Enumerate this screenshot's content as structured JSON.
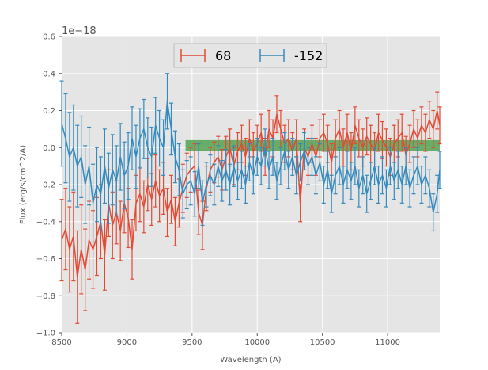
{
  "chart_data": {
    "type": "line",
    "title": "",
    "xlabel": "Wavelength (A)",
    "ylabel": "Flux (erg/s/cm^2/A)",
    "y_offset_label": "1e−18",
    "xlim": [
      8500,
      11400
    ],
    "ylim": [
      -1.0,
      0.6
    ],
    "xticks": [
      8500,
      9000,
      9500,
      10000,
      10500,
      11000
    ],
    "yticks": [
      -1.0,
      -0.8,
      -0.6,
      -0.4,
      -0.2,
      0.0,
      0.2,
      0.4,
      0.6
    ],
    "ytick_labels": [
      "−1.0",
      "−0.8",
      "−0.6",
      "−0.4",
      "−0.2",
      "0.0",
      "0.2",
      "0.4",
      "0.6"
    ],
    "grid": true,
    "legend_location": "top-center",
    "band": {
      "name": "shaded region",
      "x": [
        9450,
        11400
      ],
      "y": [
        -0.02,
        0.04
      ],
      "color": "#3c9a3c"
    },
    "series": [
      {
        "name": "68",
        "color": "#e24a33",
        "points": [
          [
            8500,
            -0.5,
            0.22
          ],
          [
            8530,
            -0.44,
            0.22
          ],
          [
            8560,
            -0.55,
            0.23
          ],
          [
            8590,
            -0.48,
            0.24
          ],
          [
            8620,
            -0.7,
            0.25
          ],
          [
            8650,
            -0.55,
            0.24
          ],
          [
            8680,
            -0.66,
            0.22
          ],
          [
            8710,
            -0.5,
            0.21
          ],
          [
            8740,
            -0.55,
            0.21
          ],
          [
            8770,
            -0.48,
            0.21
          ],
          [
            8800,
            -0.4,
            0.2
          ],
          [
            8830,
            -0.58,
            0.19
          ],
          [
            8860,
            -0.3,
            0.18
          ],
          [
            8890,
            -0.42,
            0.18
          ],
          [
            8920,
            -0.35,
            0.17
          ],
          [
            8950,
            -0.45,
            0.16
          ],
          [
            8980,
            -0.3,
            0.16
          ],
          [
            9010,
            -0.38,
            0.16
          ],
          [
            9040,
            -0.55,
            0.16
          ],
          [
            9070,
            -0.3,
            0.15
          ],
          [
            9100,
            -0.25,
            0.15
          ],
          [
            9130,
            -0.32,
            0.14
          ],
          [
            9160,
            -0.2,
            0.14
          ],
          [
            9190,
            -0.28,
            0.14
          ],
          [
            9220,
            -0.18,
            0.14
          ],
          [
            9250,
            -0.26,
            0.14
          ],
          [
            9280,
            -0.22,
            0.14
          ],
          [
            9310,
            -0.35,
            0.13
          ],
          [
            9340,
            -0.28,
            0.13
          ],
          [
            9370,
            -0.4,
            0.13
          ],
          [
            9400,
            -0.3,
            0.13
          ],
          [
            9430,
            -0.22,
            0.13
          ],
          [
            9460,
            -0.15,
            0.12
          ],
          [
            9490,
            -0.12,
            0.12
          ],
          [
            9520,
            -0.1,
            0.12
          ],
          [
            9550,
            -0.35,
            0.12
          ],
          [
            9580,
            -0.42,
            0.13
          ],
          [
            9610,
            -0.22,
            0.12
          ],
          [
            9640,
            -0.12,
            0.12
          ],
          [
            9670,
            -0.08,
            0.11
          ],
          [
            9700,
            -0.05,
            0.11
          ],
          [
            9730,
            -0.12,
            0.11
          ],
          [
            9760,
            -0.05,
            0.11
          ],
          [
            9790,
            0.0,
            0.1
          ],
          [
            9820,
            -0.1,
            0.1
          ],
          [
            9850,
            -0.02,
            0.1
          ],
          [
            9880,
            0.02,
            0.1
          ],
          [
            9910,
            -0.05,
            0.1
          ],
          [
            9940,
            0.05,
            0.1
          ],
          [
            9970,
            -0.02,
            0.1
          ],
          [
            10000,
            0.02,
            0.1
          ],
          [
            10030,
            0.08,
            0.1
          ],
          [
            10060,
            -0.05,
            0.1
          ],
          [
            10090,
            0.1,
            0.1
          ],
          [
            10120,
            0.05,
            0.1
          ],
          [
            10150,
            0.18,
            0.1
          ],
          [
            10180,
            0.1,
            0.1
          ],
          [
            10210,
            0.02,
            0.1
          ],
          [
            10240,
            0.05,
            0.1
          ],
          [
            10270,
            -0.02,
            0.1
          ],
          [
            10300,
            0.05,
            0.1
          ],
          [
            10330,
            -0.3,
            0.1
          ],
          [
            10360,
            0.0,
            0.1
          ],
          [
            10390,
            -0.05,
            0.1
          ],
          [
            10420,
            0.02,
            0.1
          ],
          [
            10450,
            -0.05,
            0.1
          ],
          [
            10480,
            0.05,
            0.1
          ],
          [
            10510,
            0.08,
            0.1
          ],
          [
            10540,
            0.02,
            0.1
          ],
          [
            10570,
            -0.08,
            0.1
          ],
          [
            10600,
            0.05,
            0.1
          ],
          [
            10630,
            0.1,
            0.1
          ],
          [
            10660,
            0.0,
            0.1
          ],
          [
            10690,
            0.08,
            0.1
          ],
          [
            10720,
            -0.02,
            0.1
          ],
          [
            10750,
            0.12,
            0.1
          ],
          [
            10780,
            0.05,
            0.1
          ],
          [
            10810,
            0.0,
            0.1
          ],
          [
            10840,
            0.06,
            0.1
          ],
          [
            10870,
            0.02,
            0.1
          ],
          [
            10900,
            -0.02,
            0.1
          ],
          [
            10930,
            0.08,
            0.1
          ],
          [
            10960,
            0.04,
            0.1
          ],
          [
            10990,
            0.0,
            0.1
          ],
          [
            11020,
            -0.05,
            0.1
          ],
          [
            11050,
            0.02,
            0.1
          ],
          [
            11080,
            0.05,
            0.1
          ],
          [
            11110,
            0.08,
            0.1
          ],
          [
            11140,
            -0.04,
            0.1
          ],
          [
            11170,
            0.02,
            0.1
          ],
          [
            11200,
            0.1,
            0.1
          ],
          [
            11230,
            0.05,
            0.1
          ],
          [
            11260,
            0.12,
            0.1
          ],
          [
            11290,
            0.08,
            0.1
          ],
          [
            11320,
            0.15,
            0.1
          ],
          [
            11350,
            0.1,
            0.1
          ],
          [
            11380,
            0.2,
            0.1
          ],
          [
            11400,
            0.12,
            0.1
          ]
        ]
      },
      {
        "name": "-152",
        "color": "#348abd",
        "points": [
          [
            8500,
            0.13,
            0.23
          ],
          [
            8530,
            0.05,
            0.24
          ],
          [
            8560,
            -0.05,
            0.24
          ],
          [
            8590,
            0.0,
            0.23
          ],
          [
            8620,
            -0.1,
            0.22
          ],
          [
            8650,
            -0.05,
            0.22
          ],
          [
            8680,
            -0.2,
            0.21
          ],
          [
            8710,
            -0.1,
            0.21
          ],
          [
            8740,
            -0.3,
            0.21
          ],
          [
            8770,
            -0.2,
            0.2
          ],
          [
            8800,
            -0.25,
            0.2
          ],
          [
            8830,
            -0.1,
            0.2
          ],
          [
            8860,
            -0.22,
            0.19
          ],
          [
            8890,
            -0.12,
            0.19
          ],
          [
            8920,
            -0.18,
            0.19
          ],
          [
            8950,
            -0.05,
            0.18
          ],
          [
            8980,
            -0.15,
            0.18
          ],
          [
            9010,
            -0.1,
            0.18
          ],
          [
            9040,
            0.05,
            0.17
          ],
          [
            9070,
            -0.05,
            0.17
          ],
          [
            9100,
            0.05,
            0.16
          ],
          [
            9130,
            0.1,
            0.16
          ],
          [
            9160,
            0.0,
            0.16
          ],
          [
            9190,
            -0.05,
            0.16
          ],
          [
            9220,
            0.12,
            0.15
          ],
          [
            9250,
            0.05,
            0.15
          ],
          [
            9280,
            0.0,
            0.15
          ],
          [
            9310,
            0.25,
            0.15
          ],
          [
            9340,
            0.1,
            0.14
          ],
          [
            9370,
            -0.05,
            0.14
          ],
          [
            9400,
            -0.12,
            0.14
          ],
          [
            9430,
            -0.25,
            0.13
          ],
          [
            9460,
            -0.2,
            0.13
          ],
          [
            9490,
            -0.18,
            0.13
          ],
          [
            9520,
            -0.25,
            0.12
          ],
          [
            9550,
            -0.1,
            0.12
          ],
          [
            9580,
            -0.3,
            0.12
          ],
          [
            9610,
            -0.2,
            0.12
          ],
          [
            9640,
            -0.15,
            0.11
          ],
          [
            9670,
            -0.2,
            0.11
          ],
          [
            9700,
            -0.1,
            0.11
          ],
          [
            9730,
            -0.18,
            0.11
          ],
          [
            9760,
            -0.12,
            0.11
          ],
          [
            9790,
            -0.2,
            0.11
          ],
          [
            9820,
            -0.1,
            0.11
          ],
          [
            9850,
            -0.18,
            0.1
          ],
          [
            9880,
            -0.12,
            0.1
          ],
          [
            9910,
            -0.2,
            0.1
          ],
          [
            9940,
            -0.08,
            0.1
          ],
          [
            9970,
            -0.15,
            0.1
          ],
          [
            10000,
            -0.05,
            0.1
          ],
          [
            10030,
            -0.1,
            0.1
          ],
          [
            10060,
            0.0,
            0.1
          ],
          [
            10090,
            -0.12,
            0.1
          ],
          [
            10120,
            -0.05,
            0.1
          ],
          [
            10150,
            -0.18,
            0.1
          ],
          [
            10180,
            -0.1,
            0.1
          ],
          [
            10210,
            -0.02,
            0.1
          ],
          [
            10240,
            -0.12,
            0.1
          ],
          [
            10270,
            -0.05,
            0.1
          ],
          [
            10300,
            -0.15,
            0.1
          ],
          [
            10330,
            -0.08,
            0.1
          ],
          [
            10360,
            -0.02,
            0.1
          ],
          [
            10390,
            -0.1,
            0.1
          ],
          [
            10420,
            -0.05,
            0.1
          ],
          [
            10450,
            -0.15,
            0.1
          ],
          [
            10480,
            -0.08,
            0.1
          ],
          [
            10510,
            -0.2,
            0.1
          ],
          [
            10540,
            -0.12,
            0.1
          ],
          [
            10570,
            -0.25,
            0.1
          ],
          [
            10600,
            -0.15,
            0.1
          ],
          [
            10630,
            -0.1,
            0.1
          ],
          [
            10660,
            -0.2,
            0.1
          ],
          [
            10690,
            -0.12,
            0.1
          ],
          [
            10720,
            -0.18,
            0.1
          ],
          [
            10750,
            -0.1,
            0.1
          ],
          [
            10780,
            -0.22,
            0.1
          ],
          [
            10810,
            -0.15,
            0.1
          ],
          [
            10840,
            -0.25,
            0.1
          ],
          [
            10870,
            -0.18,
            0.1
          ],
          [
            10900,
            -0.1,
            0.1
          ],
          [
            10930,
            -0.2,
            0.1
          ],
          [
            10960,
            -0.15,
            0.1
          ],
          [
            10990,
            -0.22,
            0.1
          ],
          [
            11020,
            -0.1,
            0.1
          ],
          [
            11050,
            -0.18,
            0.1
          ],
          [
            11080,
            -0.12,
            0.1
          ],
          [
            11110,
            -0.2,
            0.1
          ],
          [
            11140,
            -0.1,
            0.1
          ],
          [
            11170,
            -0.22,
            0.1
          ],
          [
            11200,
            -0.15,
            0.1
          ],
          [
            11230,
            -0.1,
            0.1
          ],
          [
            11260,
            -0.2,
            0.1
          ],
          [
            11290,
            -0.15,
            0.1
          ],
          [
            11320,
            -0.22,
            0.1
          ],
          [
            11350,
            -0.35,
            0.1
          ],
          [
            11380,
            -0.25,
            0.1
          ],
          [
            11400,
            -0.12,
            0.1
          ]
        ]
      }
    ]
  }
}
